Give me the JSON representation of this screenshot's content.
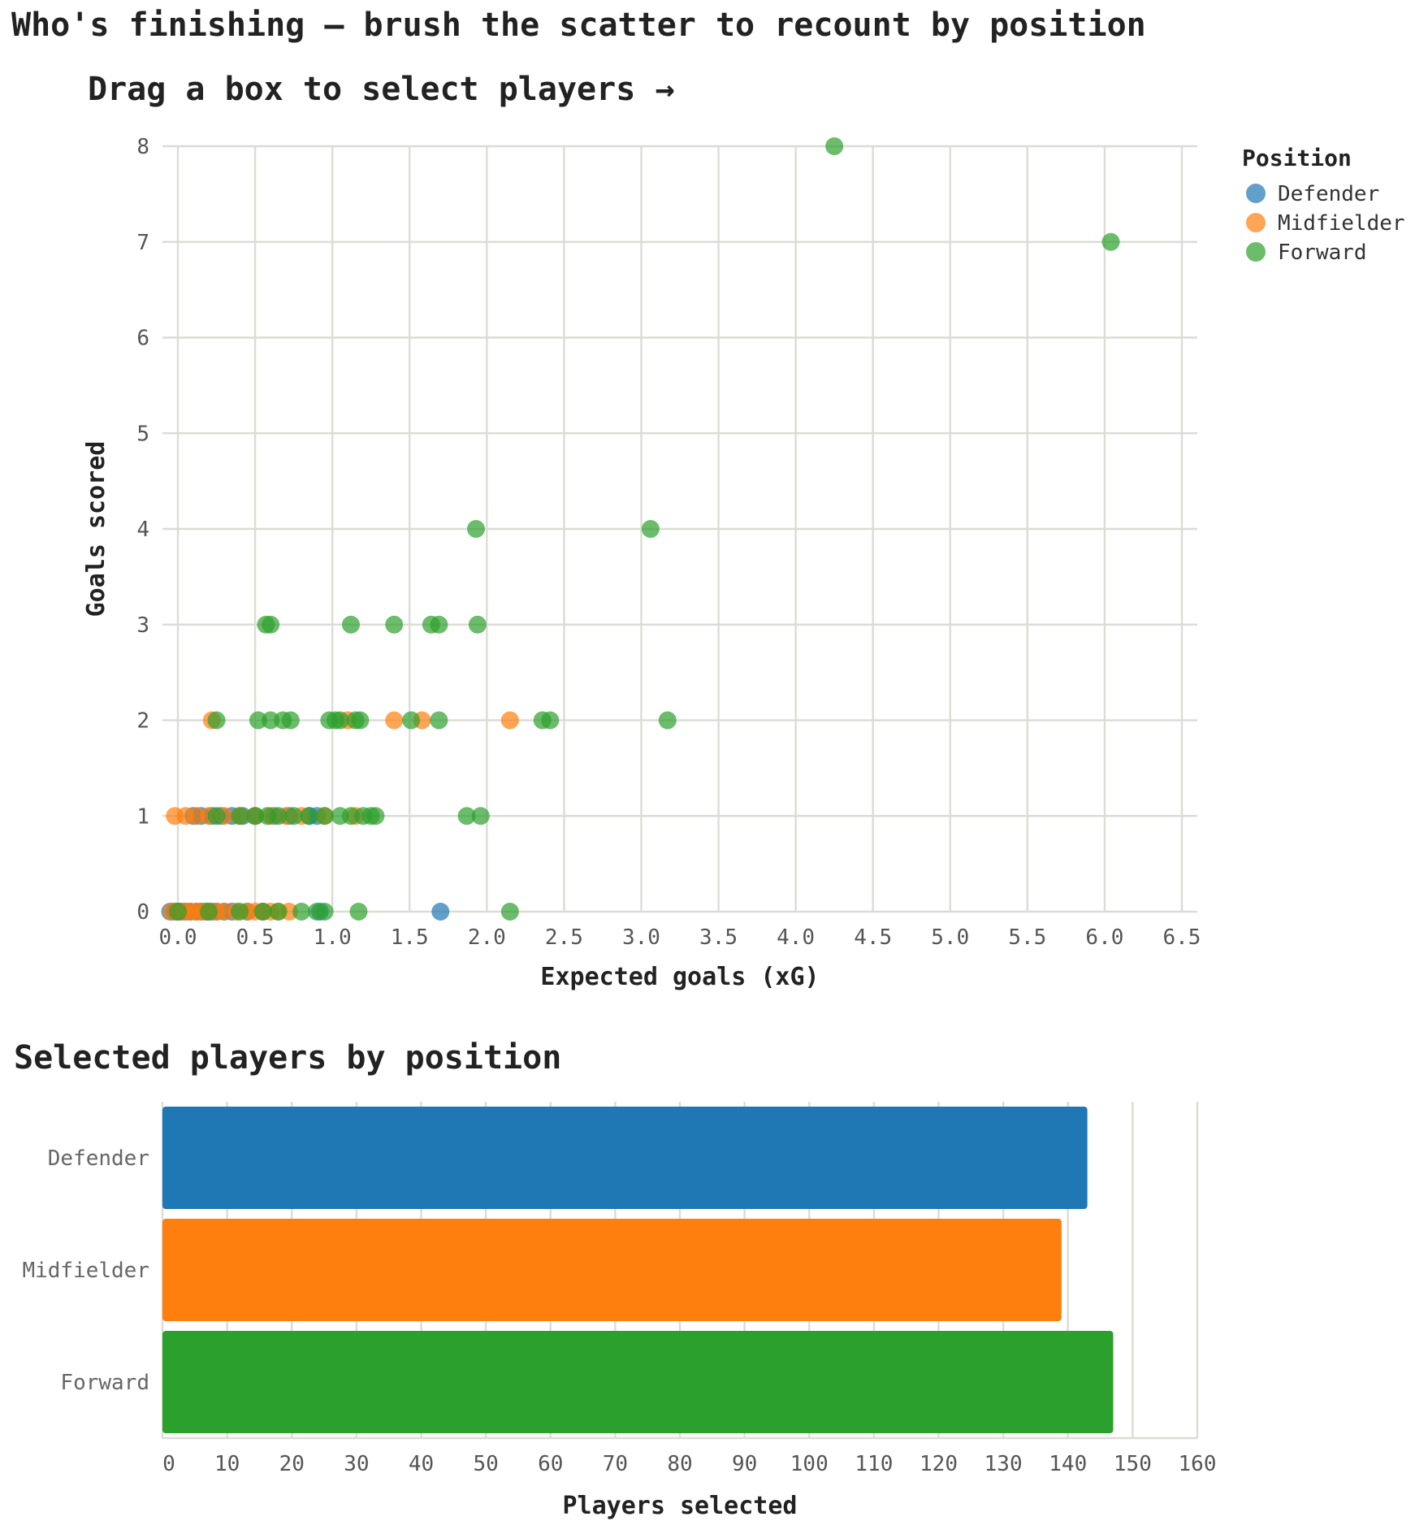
{
  "page": {
    "title": "Who's finishing — brush the scatter to recount by position",
    "instruction": "Drag a box to select players →"
  },
  "colors": {
    "Defender": "#1f77b4",
    "Midfielder": "#ff7f0e",
    "Forward": "#2ca02c",
    "grid": "#dcdcd6"
  },
  "chart_data": [
    {
      "type": "scatter",
      "title": "",
      "xlabel": "Expected goals (xG)",
      "ylabel": "Goals scored",
      "xlim": [
        -0.1,
        6.6
      ],
      "ylim": [
        0,
        8
      ],
      "xticks": [
        "0.0",
        "0.5",
        "1.0",
        "1.5",
        "2.0",
        "2.5",
        "3.0",
        "3.5",
        "4.0",
        "4.5",
        "5.0",
        "5.5",
        "6.0",
        "6.5"
      ],
      "yticks": [
        "0",
        "1",
        "2",
        "3",
        "4",
        "5",
        "6",
        "7",
        "8"
      ],
      "grid": true,
      "legend": {
        "title": "Position",
        "placement": "top-right",
        "entries": [
          "Defender",
          "Midfielder",
          "Forward"
        ]
      },
      "series": [
        {
          "name": "Defender",
          "points": [
            [
              -0.05,
              0
            ],
            [
              -0.02,
              0
            ],
            [
              0.0,
              0
            ],
            [
              0.02,
              0
            ],
            [
              0.05,
              0
            ],
            [
              0.08,
              0
            ],
            [
              0.12,
              0
            ],
            [
              0.15,
              0
            ],
            [
              0.18,
              0
            ],
            [
              0.22,
              0
            ],
            [
              0.25,
              0
            ],
            [
              0.3,
              0
            ],
            [
              0.35,
              0
            ],
            [
              0.45,
              0
            ],
            [
              0.55,
              0
            ],
            [
              0.92,
              0
            ],
            [
              1.7,
              0
            ],
            [
              0.1,
              1
            ],
            [
              0.15,
              1
            ],
            [
              0.22,
              1
            ],
            [
              0.28,
              1
            ],
            [
              0.35,
              1
            ],
            [
              0.42,
              1
            ],
            [
              0.5,
              1
            ],
            [
              0.62,
              1
            ],
            [
              0.72,
              1
            ],
            [
              0.85,
              1
            ],
            [
              0.9,
              1
            ]
          ]
        },
        {
          "name": "Midfielder",
          "points": [
            [
              -0.04,
              0
            ],
            [
              0.0,
              0
            ],
            [
              0.04,
              0
            ],
            [
              0.08,
              0
            ],
            [
              0.12,
              0
            ],
            [
              0.16,
              0
            ],
            [
              0.2,
              0
            ],
            [
              0.25,
              0
            ],
            [
              0.3,
              0
            ],
            [
              0.38,
              0
            ],
            [
              0.45,
              0
            ],
            [
              0.5,
              0
            ],
            [
              0.55,
              0
            ],
            [
              0.6,
              0
            ],
            [
              0.65,
              0
            ],
            [
              0.72,
              0
            ],
            [
              -0.02,
              1
            ],
            [
              0.05,
              1
            ],
            [
              0.12,
              1
            ],
            [
              0.2,
              1
            ],
            [
              0.3,
              1
            ],
            [
              0.4,
              1
            ],
            [
              0.5,
              1
            ],
            [
              0.6,
              1
            ],
            [
              0.7,
              1
            ],
            [
              0.8,
              1
            ],
            [
              0.95,
              1
            ],
            [
              1.15,
              1
            ],
            [
              0.22,
              2
            ],
            [
              1.1,
              2
            ],
            [
              1.4,
              2
            ],
            [
              1.58,
              2
            ],
            [
              2.15,
              2
            ]
          ]
        },
        {
          "name": "Forward",
          "points": [
            [
              0.0,
              0
            ],
            [
              0.2,
              0
            ],
            [
              0.4,
              0
            ],
            [
              0.55,
              0
            ],
            [
              0.65,
              0
            ],
            [
              0.8,
              0
            ],
            [
              0.9,
              0
            ],
            [
              0.95,
              0
            ],
            [
              1.17,
              0
            ],
            [
              2.15,
              0
            ],
            [
              0.25,
              1
            ],
            [
              0.4,
              1
            ],
            [
              0.5,
              1
            ],
            [
              0.58,
              1
            ],
            [
              0.65,
              1
            ],
            [
              0.75,
              1
            ],
            [
              0.85,
              1
            ],
            [
              0.95,
              1
            ],
            [
              1.05,
              1
            ],
            [
              1.12,
              1
            ],
            [
              1.2,
              1
            ],
            [
              1.25,
              1
            ],
            [
              1.28,
              1
            ],
            [
              1.87,
              1
            ],
            [
              1.96,
              1
            ],
            [
              0.25,
              2
            ],
            [
              0.52,
              2
            ],
            [
              0.6,
              2
            ],
            [
              0.68,
              2
            ],
            [
              0.73,
              2
            ],
            [
              0.98,
              2
            ],
            [
              1.02,
              2
            ],
            [
              1.05,
              2
            ],
            [
              1.15,
              2
            ],
            [
              1.18,
              2
            ],
            [
              1.51,
              2
            ],
            [
              1.69,
              2
            ],
            [
              2.36,
              2
            ],
            [
              2.41,
              2
            ],
            [
              3.17,
              2
            ],
            [
              0.57,
              3
            ],
            [
              0.6,
              3
            ],
            [
              1.12,
              3
            ],
            [
              1.4,
              3
            ],
            [
              1.64,
              3
            ],
            [
              1.69,
              3
            ],
            [
              1.94,
              3
            ],
            [
              1.93,
              4
            ],
            [
              3.06,
              4
            ],
            [
              6.04,
              7
            ],
            [
              4.25,
              8
            ]
          ]
        }
      ]
    },
    {
      "type": "bar",
      "orientation": "horizontal",
      "title": "Selected players by position",
      "xlabel": "Players selected",
      "ylabel": "",
      "categories": [
        "Defender",
        "Midfielder",
        "Forward"
      ],
      "values": [
        143,
        139,
        147
      ],
      "xlim": [
        0,
        160
      ],
      "xticks": [
        "0",
        "10",
        "20",
        "30",
        "40",
        "50",
        "60",
        "70",
        "80",
        "90",
        "100",
        "110",
        "120",
        "130",
        "140",
        "150",
        "160"
      ],
      "grid": true
    }
  ]
}
